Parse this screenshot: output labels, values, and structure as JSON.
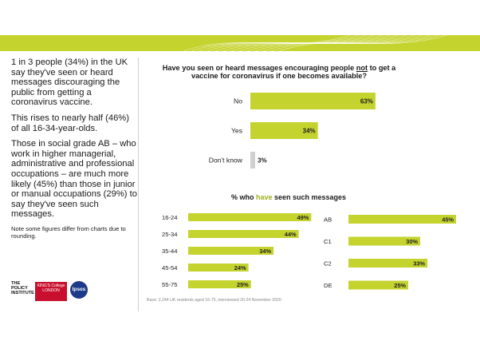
{
  "colors": {
    "bar": "#c5d32f",
    "dontknow_bar": "#cfcfcf",
    "banner": "#c5d32f",
    "highlight": "#9fb11d"
  },
  "left": {
    "para1": "1 in 3 people (34%) in the UK say they've seen or heard messages discouraging the public from getting a coronavirus vaccine.",
    "para2": "This rises to nearly half (46%) of all 16-34-year-olds.",
    "para3": "Those in social grade AB – who work in higher managerial, administrative and professional occupations – are much more likely (45%) than those in junior or manual occupations (29%) to say they've seen such messages.",
    "note": "Note some figures differ from charts due to rounding."
  },
  "logos": {
    "policy": "THE POLICY INSTITUTE",
    "kings": "KING'S College LONDON",
    "ipsos": "Ipsos"
  },
  "question": {
    "part1": "Have you seen or heard messages encouraging people ",
    "emph": "not",
    "part2": " to get a vaccine for coronavirus if one becomes available?"
  },
  "subtitle": {
    "pre": "% who ",
    "hl": "have",
    "post": " seen such messages"
  },
  "source": "Base: 2,244 UK residents aged 16-75, interviewed 20-24 November 2020",
  "chart_data": [
    {
      "type": "bar",
      "orientation": "horizontal",
      "id": "main",
      "categories": [
        "No",
        "Yes",
        "Don't know"
      ],
      "values": [
        63,
        34,
        3
      ],
      "unit": "%",
      "xlim": [
        0,
        100
      ]
    },
    {
      "type": "bar",
      "orientation": "horizontal",
      "id": "age",
      "categories": [
        "16-24",
        "25-34",
        "35-44",
        "45-54",
        "55-75"
      ],
      "values": [
        49,
        44,
        34,
        24,
        25
      ],
      "unit": "%",
      "xlim": [
        0,
        100
      ]
    },
    {
      "type": "bar",
      "orientation": "horizontal",
      "id": "grade",
      "categories": [
        "AB",
        "C1",
        "C2",
        "DE"
      ],
      "values": [
        45,
        30,
        33,
        25
      ],
      "unit": "%",
      "xlim": [
        0,
        100
      ]
    }
  ]
}
